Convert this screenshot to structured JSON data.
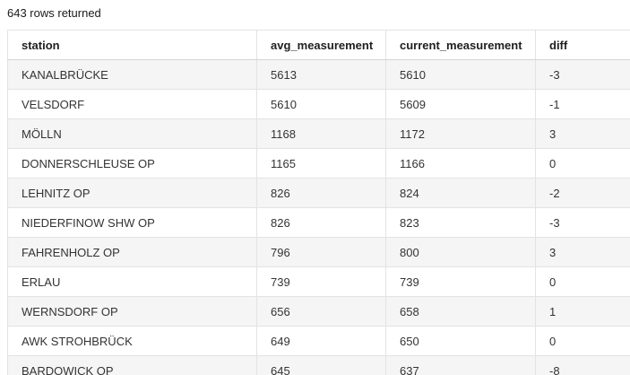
{
  "status": {
    "text": "643 rows returned"
  },
  "table": {
    "columns": [
      {
        "key": "station",
        "label": "station"
      },
      {
        "key": "avg_measurement",
        "label": "avg_measurement"
      },
      {
        "key": "current_measurement",
        "label": "current_measurement"
      },
      {
        "key": "diff",
        "label": "diff"
      }
    ],
    "rows": [
      [
        "KANALBRÜCKE",
        "5613",
        "5610",
        "-3"
      ],
      [
        "VELSDORF",
        "5610",
        "5609",
        "-1"
      ],
      [
        "MÖLLN",
        "1168",
        "1172",
        "3"
      ],
      [
        "DONNERSCHLEUSE OP",
        "1165",
        "1166",
        "0"
      ],
      [
        "LEHNITZ OP",
        "826",
        "824",
        "-2"
      ],
      [
        "NIEDERFINOW SHW OP",
        "826",
        "823",
        "-3"
      ],
      [
        "FAHRENHOLZ OP",
        "796",
        "800",
        "3"
      ],
      [
        "ERLAU",
        "739",
        "739",
        "0"
      ],
      [
        "WERNSDORF OP",
        "656",
        "658",
        "1"
      ],
      [
        "AWK STROHBRÜCK",
        "649",
        "650",
        "0"
      ],
      [
        "BARDOWICK OP",
        "645",
        "637",
        "-8"
      ]
    ]
  },
  "colors": {
    "row_stripe": "#f5f5f5",
    "table_border": "#e3e3e3",
    "header_bottom_border": "#d4d4d4",
    "header_text": "#1f1f1f",
    "cell_text": "#333333"
  }
}
